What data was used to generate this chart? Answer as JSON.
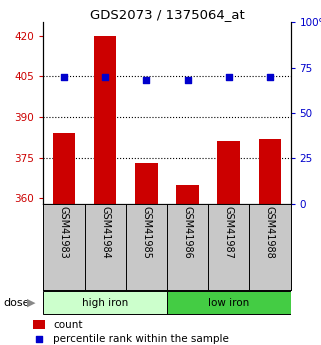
{
  "title": "GDS2073 / 1375064_at",
  "samples": [
    "GSM41983",
    "GSM41984",
    "GSM41985",
    "GSM41986",
    "GSM41987",
    "GSM41988"
  ],
  "bar_values": [
    384,
    420,
    373,
    365,
    381,
    382
  ],
  "percentile_values": [
    70,
    70,
    68,
    68,
    70,
    70
  ],
  "bar_color": "#cc0000",
  "dot_color": "#0000cc",
  "ylim_left": [
    358,
    425
  ],
  "ylim_right": [
    0,
    100
  ],
  "yticks_left": [
    360,
    375,
    390,
    405,
    420
  ],
  "yticks_right": [
    0,
    25,
    50,
    75,
    100
  ],
  "ytick_labels_right": [
    "0",
    "25",
    "50",
    "75",
    "100%"
  ],
  "hgrid_values": [
    375,
    390,
    405
  ],
  "group_labels": [
    "high iron",
    "low iron"
  ],
  "group_colors": [
    "#ccffcc",
    "#44cc44"
  ],
  "group_boundaries": [
    0,
    3,
    6
  ],
  "dose_label": "dose",
  "legend_count": "count",
  "legend_percentile": "percentile rank within the sample",
  "bar_width": 0.55,
  "baseline": 358,
  "label_bg": "#c8c8c8",
  "fig_width": 3.21,
  "fig_height": 3.45,
  "dpi": 100
}
